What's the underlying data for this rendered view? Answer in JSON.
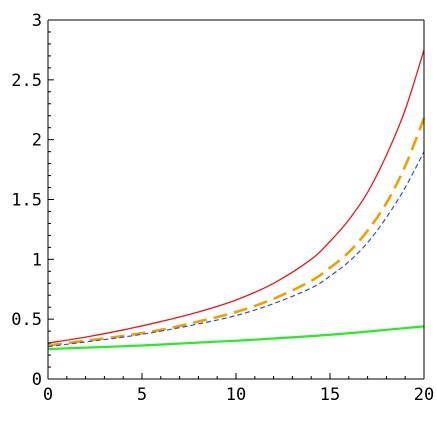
{
  "chart_data": {
    "type": "line",
    "title": "",
    "xlabel": "",
    "ylabel": "",
    "xlim": [
      0,
      20
    ],
    "ylim": [
      0,
      3
    ],
    "grid": false,
    "legend": "none",
    "x_ticks": [
      {
        "value": 0,
        "label": "0"
      },
      {
        "value": 5,
        "label": "5"
      },
      {
        "value": 10,
        "label": "10"
      },
      {
        "value": 15,
        "label": "15"
      },
      {
        "value": 20,
        "label": "20"
      }
    ],
    "y_ticks": [
      {
        "value": 0,
        "label": "0"
      },
      {
        "value": 0.5,
        "label": "0.5"
      },
      {
        "value": 1,
        "label": "1"
      },
      {
        "value": 1.5,
        "label": "1.5"
      },
      {
        "value": 2,
        "label": "2"
      },
      {
        "value": 2.5,
        "label": "2.5"
      },
      {
        "value": 3,
        "label": "3"
      }
    ],
    "series": [
      {
        "color": "#e8191e",
        "style": "solid",
        "x": [
          0,
          2,
          4,
          6,
          8,
          10,
          12,
          14,
          15,
          16,
          17,
          18,
          19,
          20
        ],
        "y": [
          0.3,
          0.35,
          0.41,
          0.48,
          0.56,
          0.66,
          0.8,
          1.0,
          1.15,
          1.33,
          1.56,
          1.87,
          2.25,
          2.75
        ]
      },
      {
        "color": "#f0a000",
        "style": "long-dash",
        "x": [
          0,
          2,
          4,
          6,
          8,
          10,
          12,
          14,
          15,
          16,
          17,
          18,
          19,
          20
        ],
        "y": [
          0.28,
          0.32,
          0.36,
          0.41,
          0.48,
          0.56,
          0.67,
          0.82,
          0.93,
          1.06,
          1.24,
          1.47,
          1.78,
          2.18
        ]
      },
      {
        "color": "#3050d8",
        "style": "short-dash",
        "x": [
          0,
          2,
          4,
          6,
          8,
          10,
          12,
          14,
          15,
          16,
          17,
          18,
          19,
          20
        ],
        "y": [
          0.27,
          0.31,
          0.35,
          0.4,
          0.46,
          0.53,
          0.63,
          0.76,
          0.86,
          0.98,
          1.14,
          1.35,
          1.6,
          1.9
        ]
      },
      {
        "color": "#22ee22",
        "style": "solid",
        "x": [
          0,
          5,
          10,
          15,
          20
        ],
        "y": [
          0.25,
          0.28,
          0.32,
          0.37,
          0.44
        ]
      }
    ]
  }
}
